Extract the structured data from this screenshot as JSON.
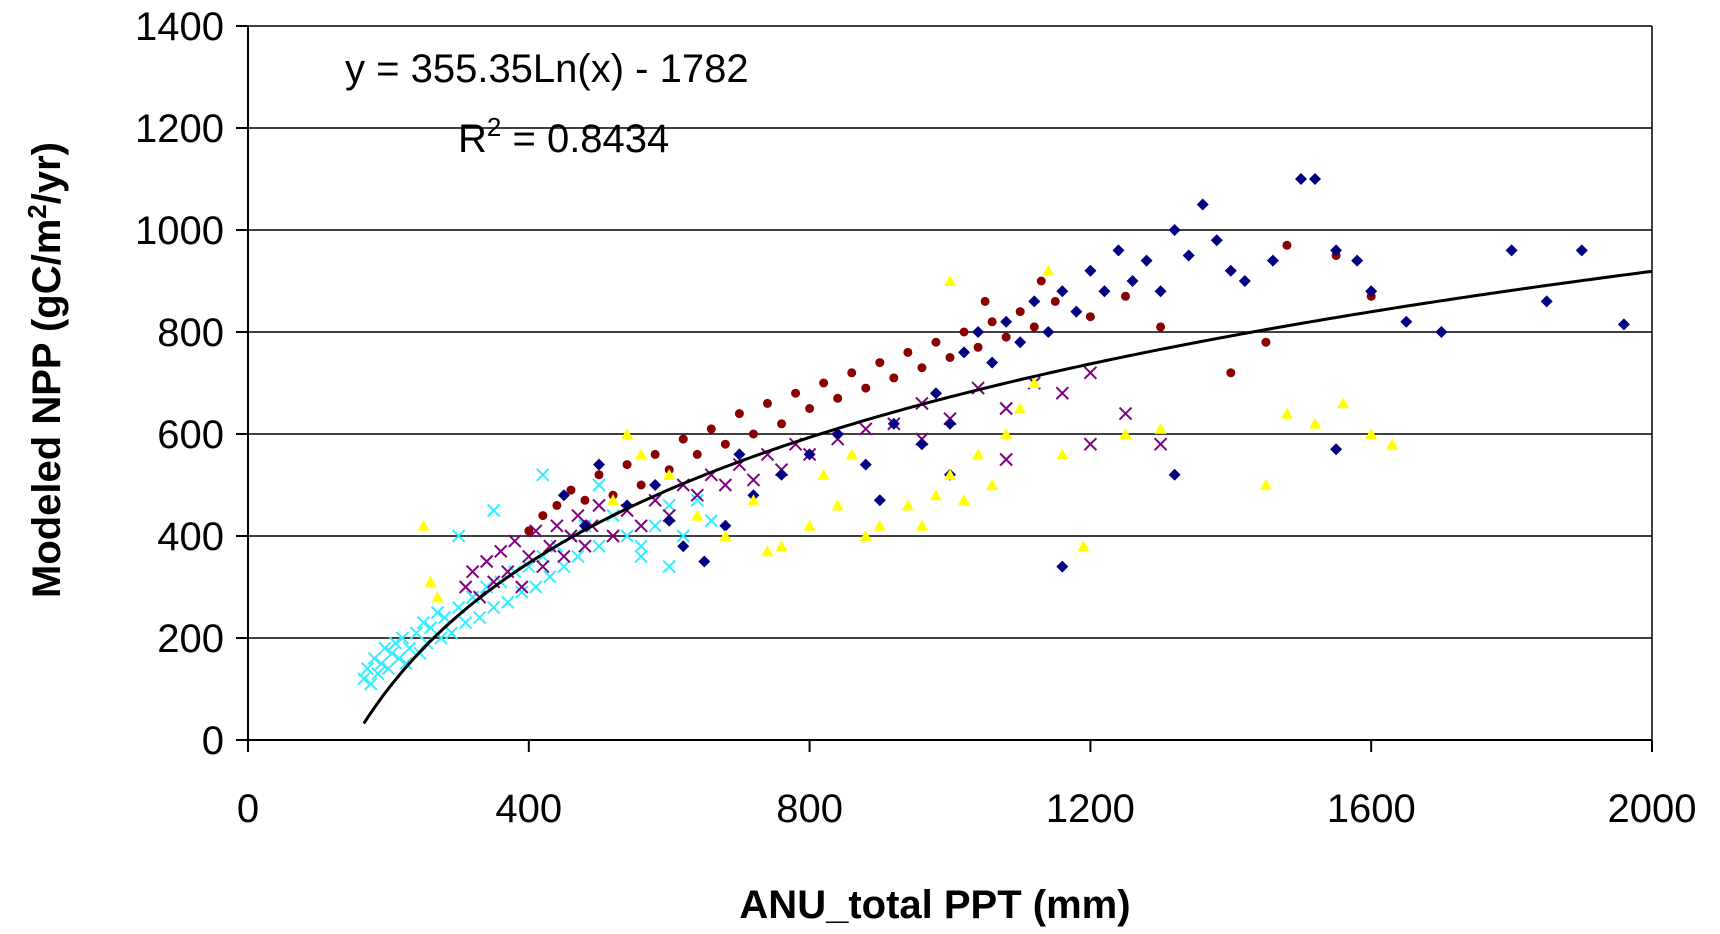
{
  "chart_data": {
    "type": "scatter",
    "title": "",
    "xlabel": "ANU_total PPT (mm)",
    "ylabel": {
      "main": "Modeled NPP (gC/m",
      "sup": "2",
      "tail": "/yr)"
    },
    "xlim": [
      0,
      2000
    ],
    "ylim": [
      0,
      1400
    ],
    "xticks": [
      0,
      400,
      800,
      1200,
      1600,
      2000
    ],
    "yticks": [
      0,
      200,
      400,
      600,
      800,
      1000,
      1200,
      1400
    ],
    "grid": "horizontal major gridlines",
    "legend": "none",
    "annotation": {
      "equation": "y = 355.35Ln(x) - 1782",
      "r2_prefix": "R",
      "r2_sup": "2",
      "r2_value": " = 0.8434"
    },
    "trendline": {
      "type": "logarithmic",
      "a": 355.35,
      "b": -1782,
      "x_range": [
        165,
        2000
      ],
      "color": "#000000"
    },
    "series": [
      {
        "marker": "x",
        "color": "#33eeff",
        "points": [
          [
            165,
            120
          ],
          [
            170,
            140
          ],
          [
            175,
            110
          ],
          [
            180,
            160
          ],
          [
            185,
            130
          ],
          [
            190,
            150
          ],
          [
            195,
            180
          ],
          [
            200,
            140
          ],
          [
            205,
            170
          ],
          [
            210,
            190
          ],
          [
            215,
            160
          ],
          [
            220,
            200
          ],
          [
            225,
            150
          ],
          [
            230,
            180
          ],
          [
            240,
            210
          ],
          [
            245,
            170
          ],
          [
            250,
            230
          ],
          [
            255,
            190
          ],
          [
            260,
            220
          ],
          [
            270,
            250
          ],
          [
            275,
            200
          ],
          [
            280,
            240
          ],
          [
            290,
            210
          ],
          [
            300,
            260
          ],
          [
            310,
            230
          ],
          [
            320,
            280
          ],
          [
            330,
            240
          ],
          [
            340,
            300
          ],
          [
            350,
            260
          ],
          [
            360,
            310
          ],
          [
            370,
            270
          ],
          [
            380,
            330
          ],
          [
            390,
            290
          ],
          [
            400,
            340
          ],
          [
            410,
            300
          ],
          [
            420,
            360
          ],
          [
            430,
            320
          ],
          [
            440,
            380
          ],
          [
            450,
            340
          ],
          [
            460,
            400
          ],
          [
            470,
            360
          ],
          [
            480,
            420
          ],
          [
            500,
            380
          ],
          [
            520,
            440
          ],
          [
            540,
            400
          ],
          [
            560,
            360
          ],
          [
            580,
            420
          ],
          [
            600,
            460
          ],
          [
            620,
            400
          ],
          [
            640,
            470
          ],
          [
            660,
            430
          ],
          [
            300,
            400
          ],
          [
            350,
            450
          ],
          [
            420,
            520
          ],
          [
            500,
            500
          ],
          [
            560,
            380
          ],
          [
            600,
            340
          ]
        ]
      },
      {
        "marker": "x",
        "color": "#800080",
        "points": [
          [
            310,
            300
          ],
          [
            320,
            330
          ],
          [
            330,
            280
          ],
          [
            340,
            350
          ],
          [
            350,
            310
          ],
          [
            360,
            370
          ],
          [
            370,
            330
          ],
          [
            380,
            390
          ],
          [
            390,
            300
          ],
          [
            400,
            360
          ],
          [
            410,
            410
          ],
          [
            420,
            340
          ],
          [
            430,
            380
          ],
          [
            440,
            420
          ],
          [
            450,
            360
          ],
          [
            460,
            400
          ],
          [
            470,
            440
          ],
          [
            480,
            380
          ],
          [
            490,
            420
          ],
          [
            500,
            460
          ],
          [
            520,
            400
          ],
          [
            540,
            450
          ],
          [
            560,
            420
          ],
          [
            580,
            470
          ],
          [
            600,
            440
          ],
          [
            620,
            500
          ],
          [
            640,
            480
          ],
          [
            660,
            520
          ],
          [
            680,
            500
          ],
          [
            700,
            540
          ],
          [
            720,
            510
          ],
          [
            740,
            560
          ],
          [
            760,
            530
          ],
          [
            780,
            580
          ],
          [
            800,
            560
          ],
          [
            840,
            590
          ],
          [
            880,
            610
          ],
          [
            920,
            620
          ],
          [
            960,
            660
          ],
          [
            1000,
            630
          ],
          [
            1040,
            690
          ],
          [
            1080,
            650
          ],
          [
            1120,
            700
          ],
          [
            1160,
            680
          ],
          [
            1200,
            720
          ],
          [
            1250,
            640
          ],
          [
            1300,
            580
          ],
          [
            960,
            590
          ],
          [
            1080,
            550
          ],
          [
            1200,
            580
          ]
        ]
      },
      {
        "marker": "circle",
        "color": "#8b0000",
        "points": [
          [
            400,
            410
          ],
          [
            420,
            440
          ],
          [
            440,
            460
          ],
          [
            460,
            490
          ],
          [
            480,
            470
          ],
          [
            500,
            520
          ],
          [
            520,
            480
          ],
          [
            540,
            540
          ],
          [
            560,
            500
          ],
          [
            580,
            560
          ],
          [
            600,
            530
          ],
          [
            620,
            590
          ],
          [
            640,
            560
          ],
          [
            660,
            610
          ],
          [
            680,
            580
          ],
          [
            700,
            640
          ],
          [
            720,
            600
          ],
          [
            740,
            660
          ],
          [
            760,
            620
          ],
          [
            780,
            680
          ],
          [
            800,
            650
          ],
          [
            820,
            700
          ],
          [
            840,
            670
          ],
          [
            860,
            720
          ],
          [
            880,
            690
          ],
          [
            900,
            740
          ],
          [
            920,
            710
          ],
          [
            940,
            760
          ],
          [
            960,
            730
          ],
          [
            980,
            780
          ],
          [
            1000,
            750
          ],
          [
            1020,
            800
          ],
          [
            1040,
            770
          ],
          [
            1060,
            820
          ],
          [
            1080,
            790
          ],
          [
            1100,
            840
          ],
          [
            1120,
            810
          ],
          [
            1150,
            860
          ],
          [
            1200,
            830
          ],
          [
            1250,
            870
          ],
          [
            1300,
            810
          ],
          [
            1400,
            720
          ],
          [
            1450,
            780
          ],
          [
            1480,
            970
          ],
          [
            1550,
            950
          ],
          [
            1600,
            870
          ],
          [
            1050,
            860
          ],
          [
            1130,
            900
          ]
        ]
      },
      {
        "marker": "diamond",
        "color": "#000080",
        "points": [
          [
            450,
            480
          ],
          [
            480,
            420
          ],
          [
            500,
            540
          ],
          [
            540,
            460
          ],
          [
            580,
            500
          ],
          [
            600,
            430
          ],
          [
            620,
            380
          ],
          [
            650,
            350
          ],
          [
            680,
            420
          ],
          [
            700,
            560
          ],
          [
            720,
            480
          ],
          [
            760,
            520
          ],
          [
            800,
            560
          ],
          [
            840,
            600
          ],
          [
            880,
            540
          ],
          [
            920,
            620
          ],
          [
            960,
            580
          ],
          [
            980,
            680
          ],
          [
            1000,
            620
          ],
          [
            1020,
            760
          ],
          [
            1040,
            800
          ],
          [
            1060,
            740
          ],
          [
            1080,
            820
          ],
          [
            1100,
            780
          ],
          [
            1120,
            860
          ],
          [
            1140,
            800
          ],
          [
            1160,
            880
          ],
          [
            1180,
            840
          ],
          [
            1200,
            920
          ],
          [
            1220,
            880
          ],
          [
            1240,
            960
          ],
          [
            1260,
            900
          ],
          [
            1280,
            940
          ],
          [
            1300,
            880
          ],
          [
            1320,
            1000
          ],
          [
            1340,
            950
          ],
          [
            1360,
            1050
          ],
          [
            1380,
            980
          ],
          [
            1400,
            920
          ],
          [
            1420,
            900
          ],
          [
            1460,
            940
          ],
          [
            1500,
            1100
          ],
          [
            1520,
            1100
          ],
          [
            1550,
            960
          ],
          [
            1580,
            940
          ],
          [
            1600,
            880
          ],
          [
            1650,
            820
          ],
          [
            1700,
            800
          ],
          [
            1800,
            960
          ],
          [
            1850,
            860
          ],
          [
            1900,
            960
          ],
          [
            1960,
            815
          ],
          [
            1550,
            570
          ],
          [
            1160,
            340
          ],
          [
            1320,
            520
          ],
          [
            1000,
            520
          ],
          [
            900,
            470
          ]
        ]
      },
      {
        "marker": "triangle",
        "color": "#ffff00",
        "points": [
          [
            250,
            420
          ],
          [
            260,
            310
          ],
          [
            270,
            280
          ],
          [
            520,
            470
          ],
          [
            540,
            600
          ],
          [
            560,
            560
          ],
          [
            600,
            520
          ],
          [
            640,
            440
          ],
          [
            680,
            400
          ],
          [
            720,
            470
          ],
          [
            760,
            380
          ],
          [
            800,
            420
          ],
          [
            840,
            460
          ],
          [
            880,
            400
          ],
          [
            900,
            420
          ],
          [
            940,
            460
          ],
          [
            960,
            420
          ],
          [
            980,
            480
          ],
          [
            1000,
            520
          ],
          [
            1020,
            470
          ],
          [
            1040,
            560
          ],
          [
            1060,
            500
          ],
          [
            1080,
            600
          ],
          [
            1100,
            650
          ],
          [
            1120,
            700
          ],
          [
            1140,
            920
          ],
          [
            1160,
            560
          ],
          [
            1190,
            380
          ],
          [
            1250,
            600
          ],
          [
            1300,
            610
          ],
          [
            1450,
            500
          ],
          [
            1480,
            640
          ],
          [
            1520,
            620
          ],
          [
            1560,
            660
          ],
          [
            1600,
            600
          ],
          [
            1630,
            580
          ],
          [
            740,
            370
          ],
          [
            820,
            520
          ],
          [
            860,
            560
          ],
          [
            1000,
            900
          ]
        ]
      }
    ]
  }
}
